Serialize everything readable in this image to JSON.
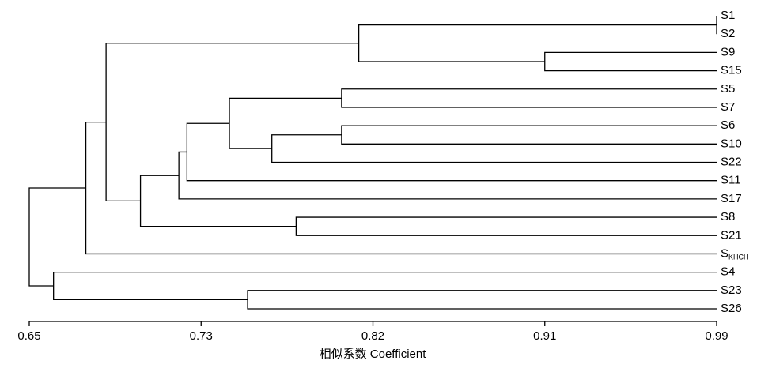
{
  "chart_data": {
    "type": "dendrogram",
    "orientation": "right",
    "leaves": [
      {
        "label": "S1"
      },
      {
        "label": "S2"
      },
      {
        "label": "S9"
      },
      {
        "label": "S15"
      },
      {
        "label": "S5"
      },
      {
        "label": "S7"
      },
      {
        "label": "S6"
      },
      {
        "label": "S10"
      },
      {
        "label": "S22"
      },
      {
        "label": "S11"
      },
      {
        "label": "S17"
      },
      {
        "label": "S8"
      },
      {
        "label": "S21"
      },
      {
        "label": "S",
        "subscript": "KHCH"
      },
      {
        "label": "S4"
      },
      {
        "label": "S23"
      },
      {
        "label": "S26"
      }
    ],
    "merges": [
      {
        "left": 0,
        "right": 1,
        "height": 0.99
      },
      {
        "left": 2,
        "right": 3,
        "height": 0.905
      },
      {
        "left": 17,
        "right": 18,
        "height": 0.813
      },
      {
        "left": 4,
        "right": 5,
        "height": 0.8045
      },
      {
        "left": 6,
        "right": 7,
        "height": 0.8045
      },
      {
        "left": 21,
        "right": 8,
        "height": 0.77
      },
      {
        "left": 20,
        "right": 22,
        "height": 0.749
      },
      {
        "left": 23,
        "right": 9,
        "height": 0.728
      },
      {
        "left": 24,
        "right": 10,
        "height": 0.724
      },
      {
        "left": 11,
        "right": 12,
        "height": 0.782
      },
      {
        "left": 25,
        "right": 26,
        "height": 0.705
      },
      {
        "left": 19,
        "right": 27,
        "height": 0.688
      },
      {
        "left": 28,
        "right": 13,
        "height": 0.678
      },
      {
        "left": 15,
        "right": 16,
        "height": 0.758
      },
      {
        "left": 14,
        "right": 30,
        "height": 0.662
      },
      {
        "left": 29,
        "right": 31,
        "height": 0.65
      }
    ],
    "xlim": [
      0.65,
      0.99
    ],
    "xticks": [
      0.65,
      {
        "value": 0.735,
        "label": "0.73"
      },
      0.82,
      {
        "value": 0.905,
        "label": "0.91"
      },
      0.99
    ],
    "xlabel": "相似系数 Coefficient"
  }
}
